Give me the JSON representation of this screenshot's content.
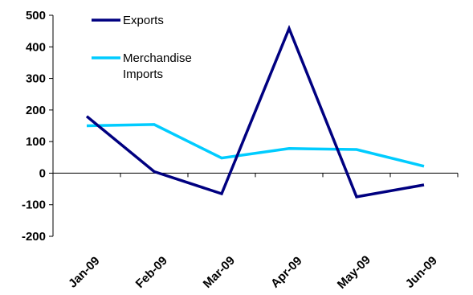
{
  "chart_data": {
    "type": "line",
    "categories": [
      "Jan-09",
      "Feb-09",
      "Mar-09",
      "Apr-09",
      "May-09",
      "Jun-09"
    ],
    "series": [
      {
        "name": "Exports",
        "color": "#000080",
        "values": [
          180,
          5,
          -65,
          458,
          -75,
          -37
        ]
      },
      {
        "name": "Merchandise Imports",
        "color": "#00ccff",
        "values": [
          150,
          154,
          48,
          78,
          75,
          22
        ]
      }
    ],
    "yticks": [
      500,
      400,
      300,
      200,
      100,
      0,
      -100,
      -200
    ],
    "ylim": [
      -200,
      500
    ],
    "grid": false,
    "legend_position": "top-left",
    "legend_lines": [
      [
        "Exports"
      ],
      [
        "Merchandise",
        "Imports"
      ]
    ]
  }
}
